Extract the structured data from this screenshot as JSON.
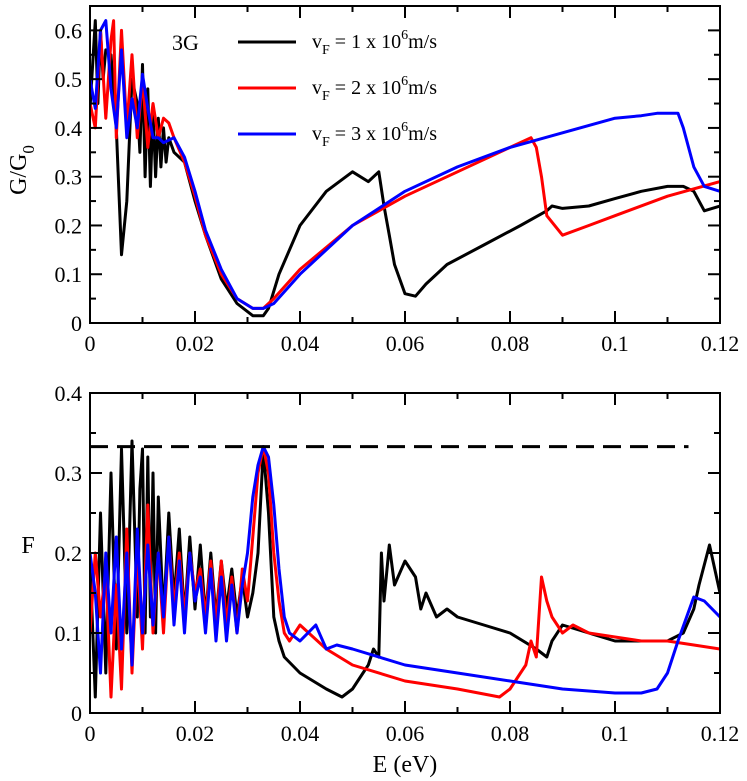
{
  "chart_data": [
    {
      "type": "line",
      "panel": "top",
      "xlabel": "",
      "ylabel": "G/G",
      "ylabel_subscript": "0",
      "xlim": [
        0,
        0.12
      ],
      "ylim": [
        0,
        0.65
      ],
      "xticks": [
        0,
        0.02,
        0.04,
        0.06,
        0.08,
        0.1,
        0.12
      ],
      "xtick_labels": [
        "0",
        "0.02",
        "0.04",
        "0.06",
        "0.08",
        "0.1",
        "0.12"
      ],
      "yticks": [
        0,
        0.1,
        0.2,
        0.3,
        0.4,
        0.5,
        0.6
      ],
      "ytick_labels": [
        "0",
        "0.1",
        "0.2",
        "0.3",
        "0.4",
        "0.5",
        "0.6"
      ],
      "annotation": "3G",
      "legend": {
        "placement": "top-center",
        "entries": [
          {
            "prefix": "v",
            "sub": "F",
            "mid": " = 1 x 10",
            "sup": "6",
            "suffix": "m/s",
            "color": "#000000"
          },
          {
            "prefix": "v",
            "sub": "F",
            "mid": " = 2 x 10",
            "sup": "6",
            "suffix": "m/s",
            "color": "#ff0000"
          },
          {
            "prefix": "v",
            "sub": "F",
            "mid": " = 3 x 10",
            "sup": "6",
            "suffix": "m/s",
            "color": "#0000ff"
          }
        ]
      },
      "series": [
        {
          "name": "vF = 1 x 10^6 m/s",
          "color": "#000000",
          "x": [
            0,
            0.001,
            0.0015,
            0.002,
            0.0025,
            0.003,
            0.004,
            0.005,
            0.006,
            0.007,
            0.008,
            0.009,
            0.0095,
            0.01,
            0.0105,
            0.011,
            0.0115,
            0.012,
            0.0125,
            0.013,
            0.0135,
            0.014,
            0.0145,
            0.015,
            0.016,
            0.018,
            0.02,
            0.022,
            0.025,
            0.028,
            0.031,
            0.033,
            0.034,
            0.036,
            0.04,
            0.045,
            0.05,
            0.053,
            0.055,
            0.056,
            0.057,
            0.058,
            0.06,
            0.062,
            0.064,
            0.068,
            0.075,
            0.082,
            0.087,
            0.088,
            0.09,
            0.095,
            0.1,
            0.105,
            0.11,
            0.113,
            0.115,
            0.117,
            0.12
          ],
          "y": [
            0.44,
            0.62,
            0.45,
            0.6,
            0.5,
            0.56,
            0.55,
            0.4,
            0.14,
            0.25,
            0.5,
            0.45,
            0.35,
            0.53,
            0.3,
            0.48,
            0.28,
            0.44,
            0.3,
            0.42,
            0.32,
            0.4,
            0.33,
            0.38,
            0.35,
            0.33,
            0.25,
            0.18,
            0.09,
            0.04,
            0.015,
            0.015,
            0.03,
            0.1,
            0.2,
            0.27,
            0.31,
            0.29,
            0.31,
            0.24,
            0.18,
            0.12,
            0.06,
            0.055,
            0.08,
            0.12,
            0.16,
            0.2,
            0.23,
            0.24,
            0.235,
            0.24,
            0.255,
            0.27,
            0.28,
            0.28,
            0.27,
            0.23,
            0.24
          ]
        },
        {
          "name": "vF = 2 x 10^6 m/s",
          "color": "#ff0000",
          "x": [
            0,
            0.001,
            0.002,
            0.003,
            0.004,
            0.0045,
            0.005,
            0.006,
            0.007,
            0.008,
            0.009,
            0.01,
            0.011,
            0.012,
            0.013,
            0.014,
            0.015,
            0.016,
            0.018,
            0.02,
            0.022,
            0.025,
            0.028,
            0.031,
            0.033,
            0.035,
            0.04,
            0.05,
            0.06,
            0.07,
            0.08,
            0.084,
            0.085,
            0.086,
            0.087,
            0.09,
            0.095,
            0.1,
            0.11,
            0.12
          ],
          "y": [
            0.45,
            0.4,
            0.6,
            0.42,
            0.58,
            0.62,
            0.38,
            0.6,
            0.4,
            0.55,
            0.38,
            0.5,
            0.36,
            0.45,
            0.38,
            0.42,
            0.41,
            0.38,
            0.33,
            0.26,
            0.18,
            0.1,
            0.05,
            0.03,
            0.03,
            0.05,
            0.11,
            0.2,
            0.26,
            0.31,
            0.36,
            0.38,
            0.36,
            0.3,
            0.22,
            0.18,
            0.2,
            0.22,
            0.26,
            0.29
          ]
        },
        {
          "name": "vF = 3 x 10^6 m/s",
          "color": "#0000ff",
          "x": [
            0,
            0.001,
            0.002,
            0.003,
            0.004,
            0.005,
            0.006,
            0.007,
            0.008,
            0.009,
            0.01,
            0.011,
            0.012,
            0.013,
            0.014,
            0.016,
            0.018,
            0.02,
            0.022,
            0.025,
            0.028,
            0.031,
            0.033,
            0.035,
            0.04,
            0.05,
            0.06,
            0.07,
            0.08,
            0.09,
            0.1,
            0.105,
            0.108,
            0.112,
            0.113,
            0.115,
            0.117,
            0.12
          ],
          "y": [
            0.5,
            0.44,
            0.6,
            0.62,
            0.48,
            0.4,
            0.56,
            0.38,
            0.46,
            0.4,
            0.51,
            0.44,
            0.38,
            0.38,
            0.37,
            0.38,
            0.34,
            0.27,
            0.19,
            0.11,
            0.05,
            0.03,
            0.03,
            0.04,
            0.1,
            0.2,
            0.27,
            0.32,
            0.36,
            0.39,
            0.42,
            0.425,
            0.43,
            0.43,
            0.4,
            0.32,
            0.28,
            0.27
          ]
        }
      ]
    },
    {
      "type": "line",
      "panel": "bottom",
      "xlabel": "E (eV)",
      "ylabel": "F",
      "xlim": [
        0,
        0.12
      ],
      "ylim": [
        0,
        0.4
      ],
      "xticks": [
        0,
        0.02,
        0.04,
        0.06,
        0.08,
        0.1,
        0.12
      ],
      "xtick_labels": [
        "0",
        "0.02",
        "0.04",
        "0.06",
        "0.08",
        "0.1",
        "0.12"
      ],
      "yticks": [
        0,
        0.1,
        0.2,
        0.3,
        0.4
      ],
      "ytick_labels": [
        "0",
        "0.1",
        "0.2",
        "0.3",
        "0.4"
      ],
      "reference_line": {
        "y": 0.333,
        "style": "dashed",
        "color": "#000000",
        "x_range": [
          0,
          0.114
        ]
      },
      "series": [
        {
          "name": "vF = 1 x 10^6 m/s",
          "color": "#000000",
          "x": [
            0,
            0.001,
            0.002,
            0.003,
            0.004,
            0.005,
            0.006,
            0.007,
            0.008,
            0.009,
            0.0095,
            0.01,
            0.0105,
            0.011,
            0.0115,
            0.012,
            0.0125,
            0.013,
            0.014,
            0.015,
            0.016,
            0.017,
            0.018,
            0.019,
            0.02,
            0.021,
            0.022,
            0.023,
            0.024,
            0.025,
            0.026,
            0.027,
            0.028,
            0.029,
            0.03,
            0.031,
            0.032,
            0.033,
            0.034,
            0.035,
            0.036,
            0.037,
            0.04,
            0.045,
            0.048,
            0.05,
            0.052,
            0.053,
            0.054,
            0.055,
            0.0555,
            0.056,
            0.057,
            0.058,
            0.06,
            0.062,
            0.063,
            0.064,
            0.066,
            0.068,
            0.07,
            0.075,
            0.08,
            0.085,
            0.087,
            0.088,
            0.09,
            0.095,
            0.1,
            0.105,
            0.11,
            0.113,
            0.115,
            0.116,
            0.118,
            0.12
          ],
          "y": [
            0.19,
            0.02,
            0.25,
            0.05,
            0.3,
            0.08,
            0.33,
            0.1,
            0.34,
            0.12,
            0.28,
            0.33,
            0.1,
            0.32,
            0.12,
            0.3,
            0.1,
            0.27,
            0.12,
            0.25,
            0.14,
            0.23,
            0.12,
            0.22,
            0.13,
            0.21,
            0.12,
            0.2,
            0.12,
            0.19,
            0.13,
            0.18,
            0.12,
            0.17,
            0.12,
            0.15,
            0.2,
            0.33,
            0.25,
            0.12,
            0.09,
            0.07,
            0.05,
            0.03,
            0.02,
            0.03,
            0.05,
            0.06,
            0.08,
            0.07,
            0.2,
            0.14,
            0.21,
            0.16,
            0.19,
            0.17,
            0.13,
            0.15,
            0.12,
            0.13,
            0.12,
            0.11,
            0.1,
            0.08,
            0.07,
            0.09,
            0.11,
            0.1,
            0.09,
            0.09,
            0.09,
            0.1,
            0.13,
            0.16,
            0.21,
            0.15
          ]
        },
        {
          "name": "vF = 2 x 10^6 m/s",
          "color": "#ff0000",
          "x": [
            0,
            0.001,
            0.002,
            0.003,
            0.004,
            0.005,
            0.006,
            0.007,
            0.008,
            0.009,
            0.01,
            0.011,
            0.012,
            0.013,
            0.014,
            0.015,
            0.016,
            0.017,
            0.018,
            0.019,
            0.02,
            0.021,
            0.022,
            0.023,
            0.024,
            0.025,
            0.026,
            0.027,
            0.028,
            0.029,
            0.03,
            0.031,
            0.032,
            0.033,
            0.034,
            0.035,
            0.036,
            0.037,
            0.038,
            0.04,
            0.045,
            0.05,
            0.06,
            0.07,
            0.078,
            0.08,
            0.082,
            0.083,
            0.084,
            0.085,
            0.086,
            0.087,
            0.088,
            0.09,
            0.092,
            0.095,
            0.1,
            0.105,
            0.11,
            0.115,
            0.12
          ],
          "y": [
            0.1,
            0.2,
            0.12,
            0.18,
            0.02,
            0.16,
            0.03,
            0.23,
            0.05,
            0.2,
            0.08,
            0.26,
            0.1,
            0.2,
            0.1,
            0.22,
            0.13,
            0.2,
            0.12,
            0.2,
            0.15,
            0.18,
            0.12,
            0.19,
            0.11,
            0.19,
            0.11,
            0.17,
            0.1,
            0.18,
            0.14,
            0.22,
            0.3,
            0.333,
            0.3,
            0.2,
            0.14,
            0.1,
            0.09,
            0.11,
            0.08,
            0.06,
            0.04,
            0.03,
            0.02,
            0.03,
            0.05,
            0.06,
            0.09,
            0.07,
            0.17,
            0.14,
            0.12,
            0.1,
            0.11,
            0.1,
            0.095,
            0.09,
            0.09,
            0.085,
            0.08
          ]
        },
        {
          "name": "vF = 3 x 10^6 m/s",
          "color": "#0000ff",
          "x": [
            0,
            0.001,
            0.002,
            0.003,
            0.004,
            0.005,
            0.006,
            0.007,
            0.008,
            0.009,
            0.01,
            0.011,
            0.012,
            0.013,
            0.014,
            0.015,
            0.016,
            0.017,
            0.018,
            0.019,
            0.02,
            0.021,
            0.022,
            0.023,
            0.024,
            0.025,
            0.026,
            0.027,
            0.028,
            0.029,
            0.03,
            0.031,
            0.032,
            0.033,
            0.034,
            0.035,
            0.036,
            0.037,
            0.038,
            0.04,
            0.043,
            0.045,
            0.047,
            0.05,
            0.06,
            0.07,
            0.08,
            0.09,
            0.1,
            0.105,
            0.108,
            0.11,
            0.112,
            0.115,
            0.117,
            0.12
          ],
          "y": [
            0.2,
            0.15,
            0.05,
            0.2,
            0.1,
            0.22,
            0.08,
            0.2,
            0.06,
            0.23,
            0.1,
            0.21,
            0.11,
            0.2,
            0.12,
            0.22,
            0.11,
            0.19,
            0.1,
            0.2,
            0.14,
            0.17,
            0.1,
            0.18,
            0.09,
            0.17,
            0.09,
            0.16,
            0.1,
            0.16,
            0.2,
            0.27,
            0.31,
            0.333,
            0.32,
            0.26,
            0.18,
            0.12,
            0.1,
            0.09,
            0.11,
            0.08,
            0.085,
            0.08,
            0.06,
            0.05,
            0.04,
            0.03,
            0.025,
            0.025,
            0.03,
            0.05,
            0.09,
            0.145,
            0.14,
            0.12
          ]
        }
      ]
    }
  ]
}
